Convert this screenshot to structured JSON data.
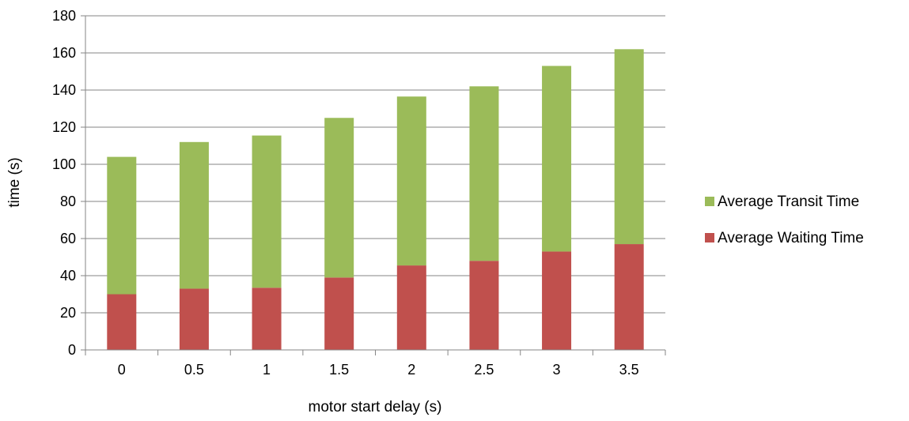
{
  "chart_data": {
    "type": "bar",
    "stacked": true,
    "categories": [
      "0",
      "0.5",
      "1",
      "1.5",
      "2",
      "2.5",
      "3",
      "3.5"
    ],
    "series": [
      {
        "name": "Average Waiting Time",
        "color": "#c0504d",
        "values": [
          30,
          33,
          33.5,
          39,
          45.5,
          48,
          53,
          57
        ]
      },
      {
        "name": "Average Transit Time",
        "color": "#9bbb59",
        "values": [
          74,
          79,
          82,
          86,
          91,
          94,
          100,
          105
        ]
      }
    ],
    "xlabel": "motor start delay (s)",
    "ylabel": "time (s)",
    "ylim": [
      0,
      180
    ],
    "yticks": [
      0,
      20,
      40,
      60,
      80,
      100,
      120,
      140,
      160,
      180
    ],
    "grid": true,
    "legend": "right",
    "gridline_color": "#868686",
    "axis_color": "#868686"
  }
}
